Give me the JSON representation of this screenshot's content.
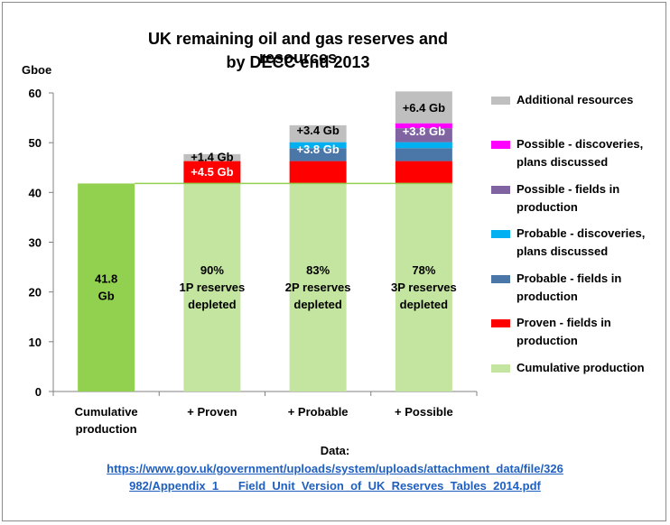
{
  "chart_data": {
    "type": "bar",
    "title": [
      "UK remaining  oil and gas reserves and resources",
      "by DECC end 2013"
    ],
    "ylabel": "Gboe",
    "ylim": [
      0,
      60
    ],
    "yticks": [
      0,
      10,
      20,
      30,
      40,
      50,
      60
    ],
    "grid": false,
    "legend_position": "right",
    "categories": [
      "Cumulative production",
      "+ Proven",
      "+ Probable",
      "+ Possible"
    ],
    "first_bar_color": "#92d050",
    "series": [
      {
        "name": "Cumulative production",
        "color": "#c4e59f",
        "values": [
          41.8,
          41.8,
          41.8,
          41.8
        ]
      },
      {
        "name": "Proven - fields in production",
        "color": "#ff0000",
        "values": [
          0,
          4.5,
          4.5,
          4.5
        ]
      },
      {
        "name": "Probable - fields in production",
        "color": "#4a76a8",
        "values": [
          0,
          0,
          2.6,
          2.6
        ]
      },
      {
        "name": "Probable - discoveries, plans discussed",
        "color": "#00b0f0",
        "values": [
          0,
          0,
          1.2,
          1.2
        ]
      },
      {
        "name": "Possible - fields in production",
        "color": "#8064a2",
        "values": [
          0,
          0,
          0,
          2.8
        ]
      },
      {
        "name": "Possible - discoveries, plans discussed",
        "color": "#ff00ff",
        "values": [
          0,
          0,
          0,
          1.0
        ]
      },
      {
        "name": "Additional resources",
        "color": "#bfbfbf",
        "values": [
          0,
          1.4,
          3.4,
          6.4
        ]
      }
    ],
    "reference_line": {
      "value": 41.8,
      "color": "#92d050"
    },
    "legend_order": [
      "Additional resources",
      "Possible - discoveries, plans discussed",
      "Possible - fields in production",
      "Probable - discoveries, plans discussed",
      "Probable - fields in production",
      "Proven - fields in production",
      "Cumulative production"
    ],
    "annotations": [
      {
        "bar": 0,
        "value": 21.0,
        "lines": [
          "41.8",
          "Gb"
        ],
        "color": "#000000"
      },
      {
        "bar": 1,
        "value": 21.0,
        "lines": [
          "90%",
          "1P reserves",
          "depleted"
        ],
        "color": "#000000"
      },
      {
        "bar": 2,
        "value": 21.0,
        "lines": [
          "83%",
          "2P reserves",
          "depleted"
        ],
        "color": "#000000"
      },
      {
        "bar": 3,
        "value": 21.0,
        "lines": [
          "78%",
          "3P reserves",
          "depleted"
        ],
        "color": "#000000"
      },
      {
        "bar": 1,
        "value": 47.2,
        "lines": [
          "+1.4 Gb"
        ],
        "color": "#000000"
      },
      {
        "bar": 1,
        "value": 44.2,
        "lines": [
          "+4.5 Gb"
        ],
        "color": "#ffffff"
      },
      {
        "bar": 2,
        "value": 52.6,
        "lines": [
          "+3.4 Gb"
        ],
        "color": "#000000"
      },
      {
        "bar": 2,
        "value": 48.8,
        "lines": [
          "+3.8 Gb"
        ],
        "color": "#ffffff"
      },
      {
        "bar": 3,
        "value": 57.1,
        "lines": [
          "+6.4 Gb"
        ],
        "color": "#000000"
      },
      {
        "bar": 3,
        "value": 52.4,
        "lines": [
          "+3.8 Gb"
        ],
        "color": "#ffffff"
      }
    ]
  },
  "source": {
    "label": "Data:",
    "url_line1": "https://www.gov.uk/government/uploads/system/uploads/attachment_data/file/326",
    "url_line2": "982/Appendix_1___Field_Unit_Version_of_UK_Reserves_Tables_2014.pdf"
  }
}
